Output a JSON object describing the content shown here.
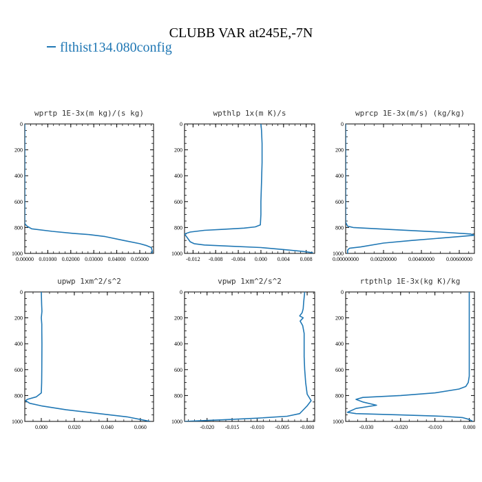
{
  "figure": {
    "title": "CLUBB VAR at245E,-7N",
    "legend_label": "flthist134.080config",
    "line_color": "#1f77b4"
  },
  "chart_data": [
    {
      "type": "line",
      "title": "wprtp  1E-3x(m kg)/(s kg)",
      "xlim": [
        0,
        0.056
      ],
      "ylim": [
        1000,
        0
      ],
      "xticks": [
        0,
        0.01,
        0.02,
        0.03,
        0.04,
        0.05
      ],
      "xtick_labels": [
        "0.00000",
        "0.01000",
        "0.02000",
        "0.03000",
        "0.04000",
        "0.05000"
      ],
      "yticks": [
        0,
        200,
        400,
        600,
        800,
        1000
      ],
      "series": [
        {
          "x": [
            0,
            0,
            0,
            0.001,
            0.003,
            0.012,
            0.021,
            0.028,
            0.035,
            0.043,
            0.05,
            0.053,
            0.055,
            0.0553,
            0.0555,
            0.0548
          ],
          "y": [
            0,
            400,
            770,
            790,
            810,
            830,
            845,
            855,
            870,
            900,
            925,
            940,
            955,
            975,
            990,
            1000
          ]
        }
      ]
    },
    {
      "type": "line",
      "title": "wpthlp  1x(m K)/s",
      "xlim": [
        -0.0135,
        0.0095
      ],
      "ylim": [
        1000,
        0
      ],
      "xticks": [
        -0.012,
        -0.008,
        -0.004,
        0,
        0.004,
        0.008
      ],
      "xtick_labels": [
        "-0.012",
        "-0.008",
        "-0.004",
        "0.000",
        "0.004",
        "0.008"
      ],
      "yticks": [
        0,
        200,
        400,
        600,
        800,
        1000
      ],
      "series": [
        {
          "x": [
            0.0,
            0.0001,
            0.0002,
            0.0002,
            0.0001,
            0.0,
            0.0,
            -0.0001,
            -0.001,
            -0.003,
            -0.007,
            -0.01,
            -0.0125,
            -0.0135,
            -0.013,
            -0.0125,
            -0.0118,
            -0.01,
            -0.005,
            0.0,
            0.004,
            0.0075,
            0.0092
          ],
          "y": [
            0,
            50,
            150,
            300,
            450,
            600,
            700,
            780,
            795,
            805,
            815,
            822,
            835,
            850,
            880,
            910,
            925,
            935,
            945,
            955,
            970,
            985,
            995
          ]
        }
      ]
    },
    {
      "type": "line",
      "title": "wprcp  1E-3x(m/s) (kg/kg)",
      "xlim": [
        0,
        0.0068
      ],
      "ylim": [
        1000,
        0
      ],
      "xticks": [
        0,
        0.002,
        0.004,
        0.006
      ],
      "xtick_labels": [
        "0.00000000",
        "0.00200000",
        "0.00400000",
        "0.00600000"
      ],
      "yticks": [
        0,
        200,
        400,
        600,
        800,
        1000
      ],
      "series": [
        {
          "x": [
            0,
            0,
            0,
            0.0001,
            0.0004,
            0.001,
            0.003,
            0.005,
            0.0066,
            0.0068,
            0.006,
            0.0035,
            0.002,
            0.0008,
            0.0002,
            0.0001,
            0.0001
          ],
          "y": [
            0,
            300,
            760,
            790,
            800,
            805,
            820,
            835,
            850,
            860,
            870,
            900,
            920,
            950,
            960,
            975,
            1000
          ]
        }
      ]
    },
    {
      "type": "line",
      "title": "upwp  1xm^2/s^2",
      "xlim": [
        -0.01,
        0.068
      ],
      "ylim": [
        1000,
        0
      ],
      "xticks": [
        0,
        0.02,
        0.04,
        0.06
      ],
      "xtick_labels": [
        "0.000",
        "0.020",
        "0.040",
        "0.060"
      ],
      "yticks": [
        0,
        200,
        400,
        600,
        800,
        1000
      ],
      "series": [
        {
          "x": [
            0.0,
            0.0002,
            0.0004,
            0.0,
            0.0003,
            0.0003,
            0.0004,
            0.0003,
            0.0002,
            0.0,
            -0.003,
            -0.0085,
            -0.0095,
            -0.007,
            0.0,
            0.015,
            0.035,
            0.052,
            0.06,
            0.066
          ],
          "y": [
            0,
            100,
            150,
            200,
            250,
            300,
            400,
            600,
            700,
            780,
            810,
            830,
            840,
            860,
            880,
            910,
            940,
            965,
            985,
            1000
          ]
        }
      ]
    },
    {
      "type": "line",
      "title": "vpwp  1xm^2/s^2",
      "xlim": [
        -0.0245,
        0.0015
      ],
      "ylim": [
        1000,
        0
      ],
      "xticks": [
        -0.02,
        -0.015,
        -0.01,
        -0.005,
        0
      ],
      "xtick_labels": [
        "-0.020",
        "-0.015",
        "-0.010",
        "-0.005",
        "-0.000"
      ],
      "yticks": [
        0,
        200,
        400,
        600,
        800,
        1000
      ],
      "series": [
        {
          "x": [
            -0.0005,
            -0.0007,
            -0.0008,
            -0.001,
            -0.0015,
            -0.0008,
            -0.0014,
            -0.0009,
            -0.0006,
            -0.0006,
            -0.0005,
            -0.0003,
            0.0,
            0.0008,
            0.0,
            -0.001,
            -0.0015,
            -0.004,
            -0.01,
            -0.017,
            -0.022,
            -0.0245
          ],
          "y": [
            0,
            80,
            130,
            160,
            185,
            200,
            225,
            260,
            320,
            500,
            600,
            700,
            790,
            840,
            880,
            920,
            940,
            960,
            975,
            988,
            996,
            1000
          ]
        }
      ]
    },
    {
      "type": "line",
      "title": "rtpthlp  1E-3x(kg K)/kg",
      "xlim": [
        -0.036,
        0.0015
      ],
      "ylim": [
        1000,
        0
      ],
      "xticks": [
        -0.03,
        -0.02,
        -0.01,
        0
      ],
      "xtick_labels": [
        "-0.030",
        "-0.020",
        "-0.010",
        "0.000"
      ],
      "yticks": [
        0,
        200,
        400,
        600,
        800,
        1000
      ],
      "series": [
        {
          "x": [
            0.0,
            0.0,
            0.0,
            -0.0003,
            -0.001,
            -0.003,
            -0.01,
            -0.02,
            -0.031,
            -0.033,
            -0.031,
            -0.027,
            -0.033,
            -0.0355,
            -0.033,
            -0.02,
            -0.008,
            -0.002,
            0.0,
            0.001
          ],
          "y": [
            0,
            300,
            650,
            700,
            730,
            750,
            780,
            800,
            815,
            830,
            850,
            875,
            900,
            930,
            940,
            950,
            960,
            970,
            985,
            1000
          ]
        }
      ]
    }
  ]
}
